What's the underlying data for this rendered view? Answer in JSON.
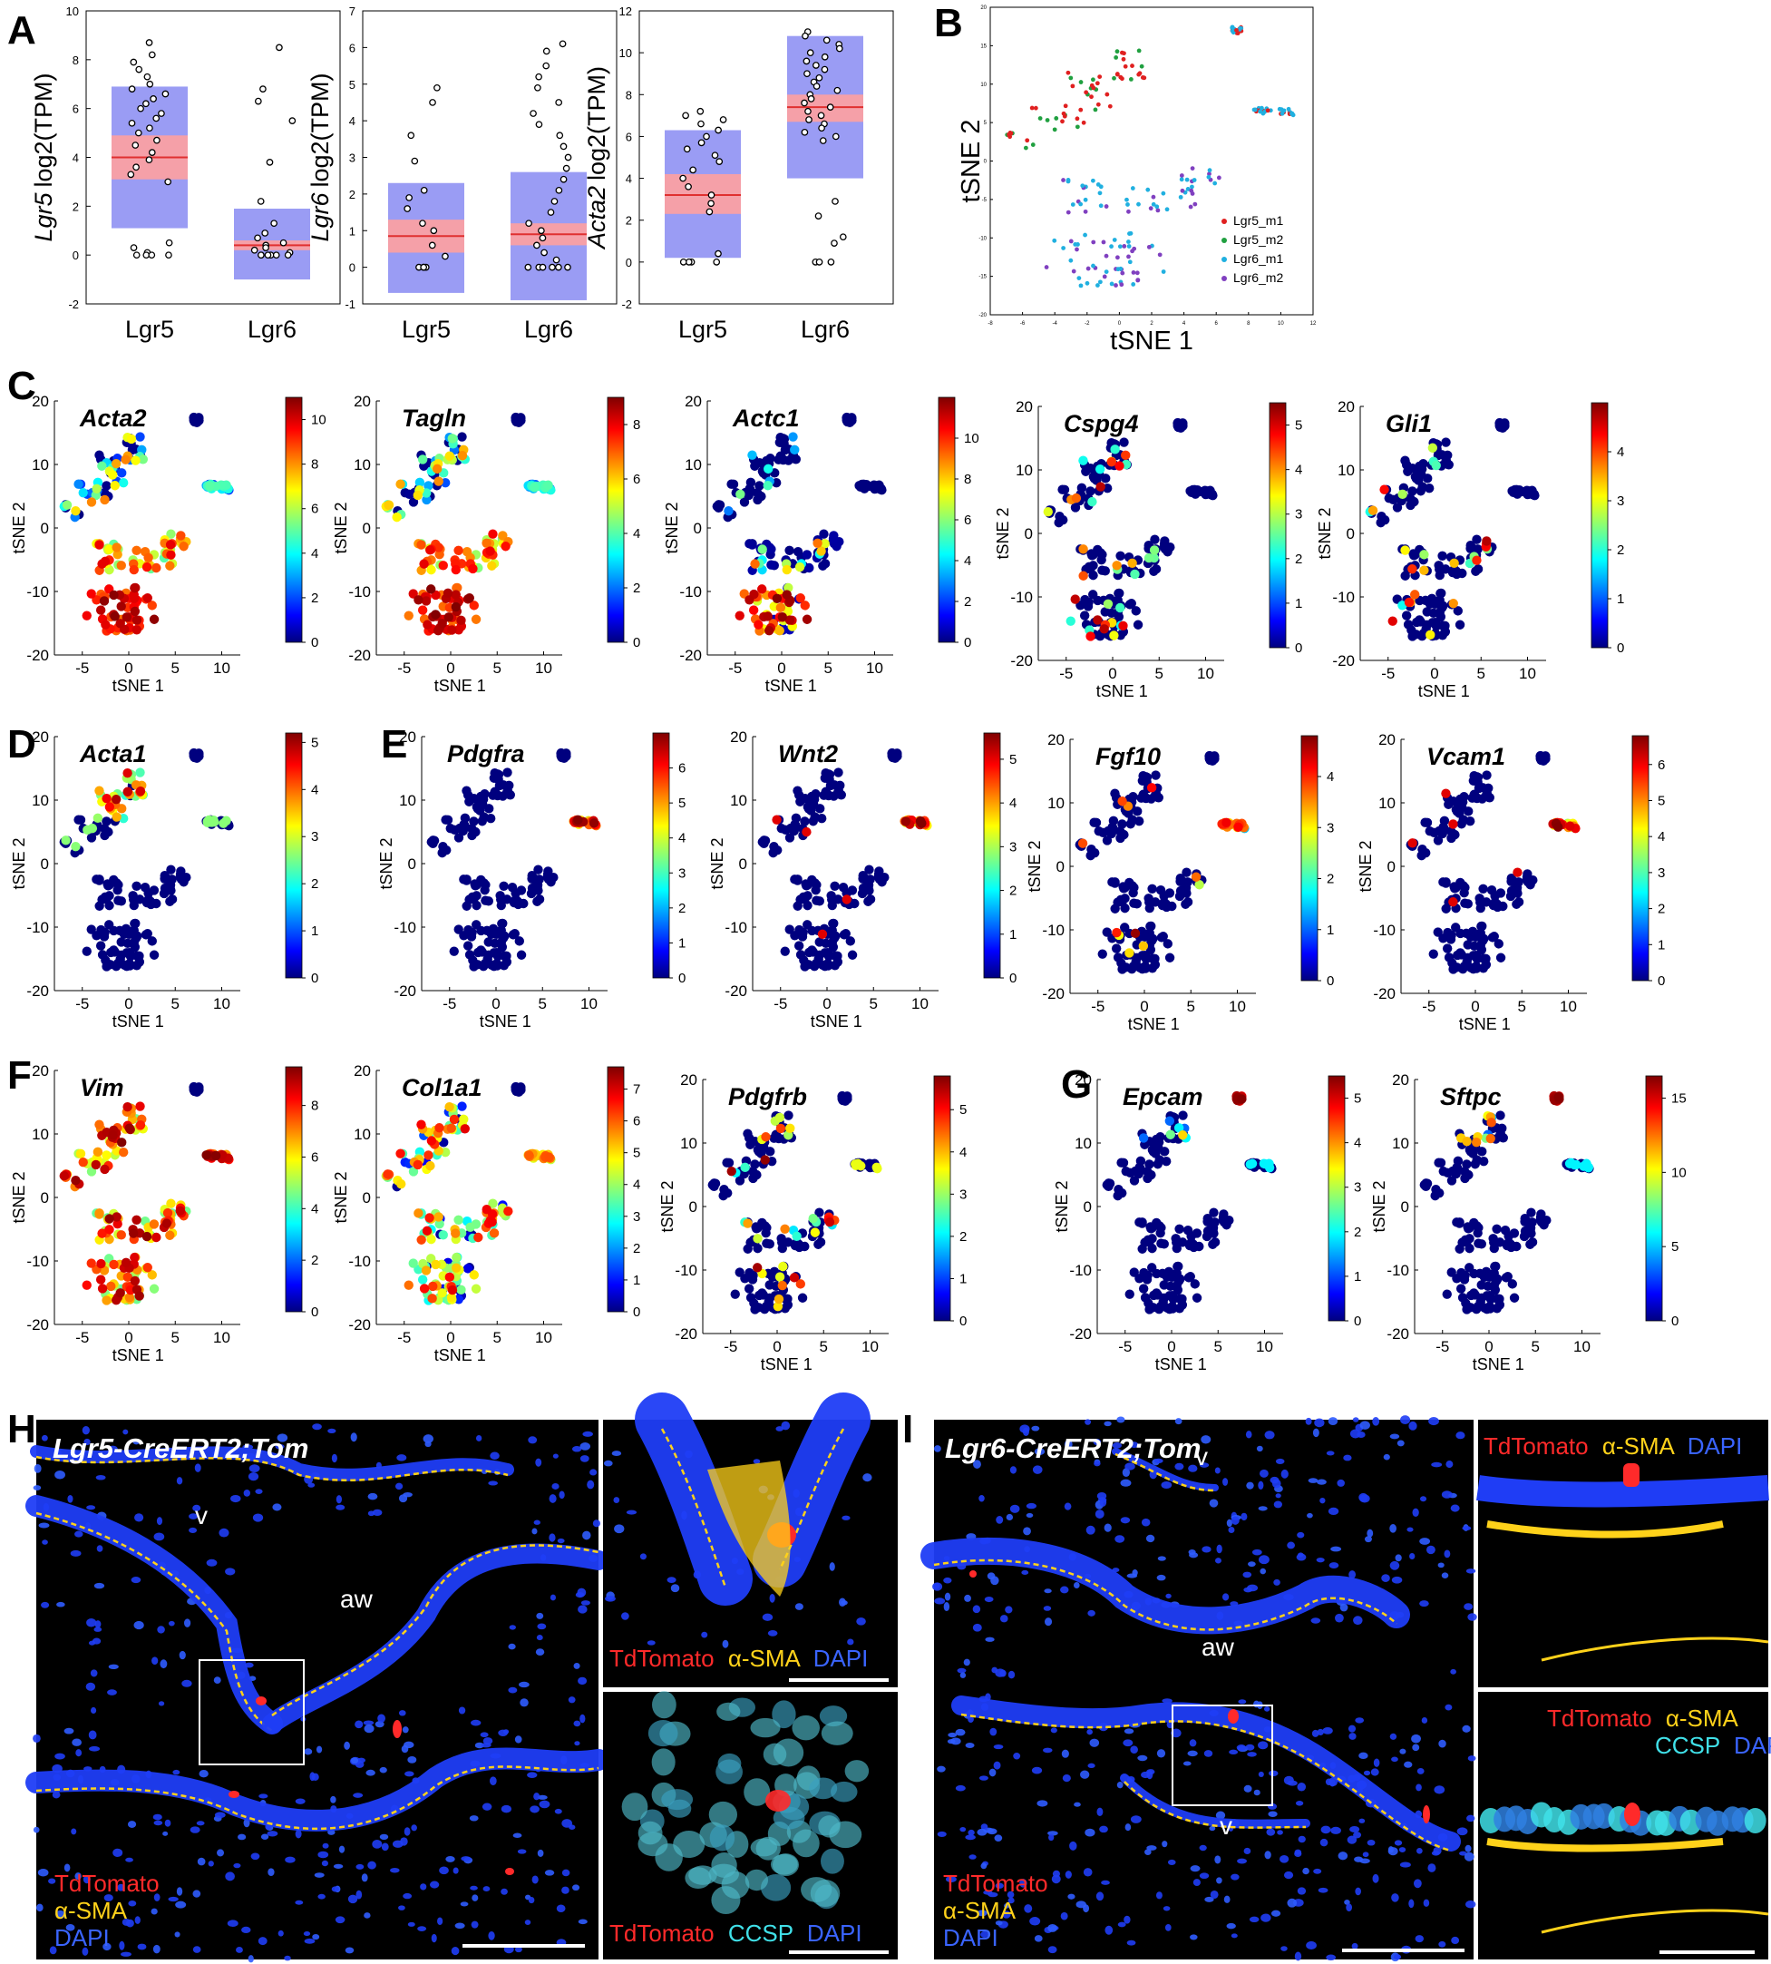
{
  "panel_labels": {
    "A": "A",
    "B": "B",
    "C": "C",
    "D": "D",
    "E": "E",
    "F": "F",
    "G": "G",
    "H": "H",
    "I": "I"
  },
  "chart_data": [
    {
      "type": "box",
      "panel": "A",
      "ylabel_gene": "Lgr5",
      "ylabel_unit": "log2(TPM)",
      "categories": [
        "Lgr5",
        "Lgr6"
      ],
      "ylim": [
        -2,
        10
      ],
      "yticks": [
        -2,
        0,
        2,
        4,
        6,
        8,
        10
      ],
      "boxes": [
        {
          "q1": 1.1,
          "q3": 6.9,
          "ci_low": 3.1,
          "ci_high": 4.9,
          "median": 4.0
        },
        {
          "q1": -1.0,
          "q3": 1.9,
          "ci_low": 0.2,
          "ci_high": 0.6,
          "median": 0.4
        }
      ],
      "points": [
        [
          8.7,
          8.2,
          7.9,
          7.6,
          7.3,
          7.0,
          6.8,
          6.6,
          6.4,
          6.2,
          6.0,
          5.8,
          5.6,
          5.4,
          5.2,
          5.0,
          4.7,
          4.5,
          4.2,
          3.9,
          3.6,
          3.3,
          3.0,
          0.5,
          0.3,
          0.1,
          0.0,
          0.0,
          0.0,
          0.0
        ],
        [
          8.5,
          6.8,
          6.3,
          5.5,
          3.8,
          2.2,
          1.3,
          0.9,
          0.7,
          0.5,
          0.4,
          0.3,
          0.2,
          0.1,
          0.0,
          0.0,
          0.0,
          0.0,
          0.0,
          0.0
        ]
      ]
    },
    {
      "type": "box",
      "panel": "A",
      "ylabel_gene": "Lgr6",
      "ylabel_unit": "log2(TPM)",
      "categories": [
        "Lgr5",
        "Lgr6"
      ],
      "ylim": [
        -1,
        7
      ],
      "yticks": [
        -1,
        0,
        1,
        2,
        3,
        4,
        5,
        6,
        7
      ],
      "boxes": [
        {
          "q1": -0.7,
          "q3": 2.3,
          "ci_low": 0.4,
          "ci_high": 1.3,
          "median": 0.85
        },
        {
          "q1": -0.9,
          "q3": 2.6,
          "ci_low": 0.6,
          "ci_high": 1.2,
          "median": 0.9
        }
      ],
      "points": [
        [
          4.9,
          4.5,
          3.6,
          2.9,
          2.1,
          1.9,
          1.6,
          1.2,
          1.0,
          0.6,
          0.3,
          0.0,
          0.0,
          0.0,
          0.0
        ],
        [
          6.1,
          5.9,
          5.5,
          5.2,
          4.9,
          4.5,
          4.2,
          3.9,
          3.6,
          3.3,
          3.0,
          2.7,
          2.4,
          2.1,
          1.8,
          1.5,
          1.2,
          1.0,
          0.8,
          0.6,
          0.4,
          0.2,
          0.0,
          0.0,
          0.0,
          0.0,
          0.0,
          0.0
        ]
      ]
    },
    {
      "type": "box",
      "panel": "A",
      "ylabel_gene": "Acta2",
      "ylabel_unit": "log2(TPM)",
      "categories": [
        "Lgr5",
        "Lgr6"
      ],
      "ylim": [
        -2,
        12
      ],
      "yticks": [
        -2,
        0,
        2,
        4,
        6,
        8,
        10,
        12
      ],
      "boxes": [
        {
          "q1": 0.2,
          "q3": 6.3,
          "ci_low": 2.3,
          "ci_high": 4.2,
          "median": 3.2
        },
        {
          "q1": 4.0,
          "q3": 10.8,
          "ci_low": 6.7,
          "ci_high": 8.0,
          "median": 7.4
        }
      ],
      "points": [
        [
          7.2,
          7.0,
          6.8,
          6.6,
          6.3,
          6.0,
          5.7,
          5.4,
          5.1,
          4.8,
          4.4,
          4.0,
          3.6,
          3.2,
          2.8,
          2.4,
          0.4,
          0.0,
          0.0,
          0.0,
          0.0
        ],
        [
          11.0,
          10.8,
          10.6,
          10.4,
          10.2,
          10.0,
          9.8,
          9.6,
          9.4,
          9.2,
          9.0,
          8.8,
          8.6,
          8.4,
          8.2,
          8.0,
          7.8,
          7.6,
          7.4,
          7.2,
          7.0,
          6.8,
          6.6,
          6.4,
          6.2,
          6.0,
          5.8,
          2.9,
          2.2,
          1.2,
          0.9,
          0.0,
          0.0,
          0.0
        ]
      ]
    },
    {
      "type": "scatter",
      "panel": "B",
      "xlabel": "tSNE 1",
      "ylabel": "tSNE 2",
      "xlim": [
        -8,
        12
      ],
      "ylim": [
        -20,
        20
      ],
      "xticks": [
        -8,
        -6,
        -4,
        -2,
        0,
        2,
        4,
        6,
        8,
        10,
        12
      ],
      "yticks": [
        -20,
        -15,
        -10,
        -5,
        0,
        5,
        10,
        15,
        20
      ],
      "legend": [
        {
          "name": "Lgr5_m1",
          "color": "#e02020"
        },
        {
          "name": "Lgr5_m2",
          "color": "#20a040"
        },
        {
          "name": "Lgr6_m1",
          "color": "#20b0e0"
        },
        {
          "name": "Lgr6_m2",
          "color": "#8040c0"
        }
      ]
    }
  ],
  "tsne_panels": [
    {
      "gene": "Acta2",
      "max": 11,
      "ticks": [
        0,
        2,
        4,
        6,
        8,
        10
      ],
      "profile": "acta2"
    },
    {
      "gene": "Tagln",
      "max": 9,
      "ticks": [
        0,
        2,
        4,
        6,
        8
      ],
      "profile": "acta2"
    },
    {
      "gene": "Actc1",
      "max": 12,
      "ticks": [
        0,
        2,
        4,
        6,
        8,
        10
      ],
      "profile": "actc1"
    },
    {
      "gene": "Cspg4",
      "max": 5.5,
      "ticks": [
        0,
        1,
        2,
        3,
        4,
        5
      ],
      "profile": "sparse_low"
    },
    {
      "gene": "Gli1",
      "max": 5,
      "ticks": [
        0,
        1,
        2,
        3,
        4
      ],
      "profile": "sparse_low"
    },
    {
      "gene": "Acta1",
      "max": 5.2,
      "ticks": [
        0,
        1,
        2,
        3,
        4,
        5
      ],
      "profile": "acta1"
    },
    {
      "gene": "Pdgfra",
      "max": 7,
      "ticks": [
        0,
        1,
        2,
        3,
        4,
        5,
        6
      ],
      "profile": "fib"
    },
    {
      "gene": "Wnt2",
      "max": 5.6,
      "ticks": [
        0,
        1,
        2,
        3,
        4,
        5
      ],
      "profile": "fib"
    },
    {
      "gene": "Fgf10",
      "max": 4.8,
      "ticks": [
        0,
        1,
        2,
        3,
        4
      ],
      "profile": "fib_sparse"
    },
    {
      "gene": "Vcam1",
      "max": 6.8,
      "ticks": [
        0,
        1,
        2,
        3,
        4,
        5,
        6
      ],
      "profile": "fib"
    },
    {
      "gene": "Vim",
      "max": 9.5,
      "ticks": [
        0,
        2,
        4,
        6,
        8
      ],
      "profile": "vim"
    },
    {
      "gene": "Col1a1",
      "max": 7.7,
      "ticks": [
        0,
        1,
        2,
        3,
        4,
        5,
        6,
        7
      ],
      "profile": "col"
    },
    {
      "gene": "Pdgfrb",
      "max": 5.8,
      "ticks": [
        0,
        1,
        2,
        3,
        4,
        5
      ],
      "profile": "sparse_mid"
    },
    {
      "gene": "Epcam",
      "max": 5.5,
      "ticks": [
        0,
        1,
        2,
        3,
        4,
        5
      ],
      "profile": "epi"
    },
    {
      "gene": "Sftpc",
      "max": 16.5,
      "ticks": [
        0,
        5,
        10,
        15
      ],
      "profile": "epi"
    }
  ],
  "tsne_axes": {
    "xlabel": "tSNE 1",
    "ylabel": "tSNE 2",
    "xticks": [
      -5,
      0,
      5,
      10
    ],
    "yticks": [
      -20,
      -10,
      0,
      10,
      20
    ]
  },
  "micrographs": {
    "H": {
      "title": "Lgr5-CreERT2;Tom",
      "labels": {
        "v": "v",
        "aw": "aw"
      },
      "legend": [
        "TdTomato",
        "α-SMA",
        "DAPI"
      ],
      "inset_top": [
        "TdTomato",
        "α-SMA",
        "DAPI"
      ],
      "inset_bottom": [
        "TdTomato",
        "CCSP",
        "DAPI"
      ]
    },
    "I": {
      "title": "Lgr6-CreERT2;Tom",
      "labels": {
        "v_top": "v",
        "aw": "aw",
        "v_bottom": "v"
      },
      "legend": [
        "TdTomato",
        "α-SMA",
        "DAPI"
      ],
      "inset_top": [
        "TdTomato",
        "α-SMA",
        "DAPI"
      ],
      "inset_bottom_line1": [
        "TdTomato",
        "α-SMA"
      ],
      "inset_bottom_line2": [
        "CCSP",
        "DAPI"
      ]
    }
  },
  "colors": {
    "box_iqr": "#9a9cf4",
    "box_ci": "#f5a0a8",
    "median": "#e03030",
    "tdtomato": "#ff2a2a",
    "asma": "#ffd21a",
    "dapi": "#3a64ff",
    "ccsp": "#40e0e8"
  }
}
